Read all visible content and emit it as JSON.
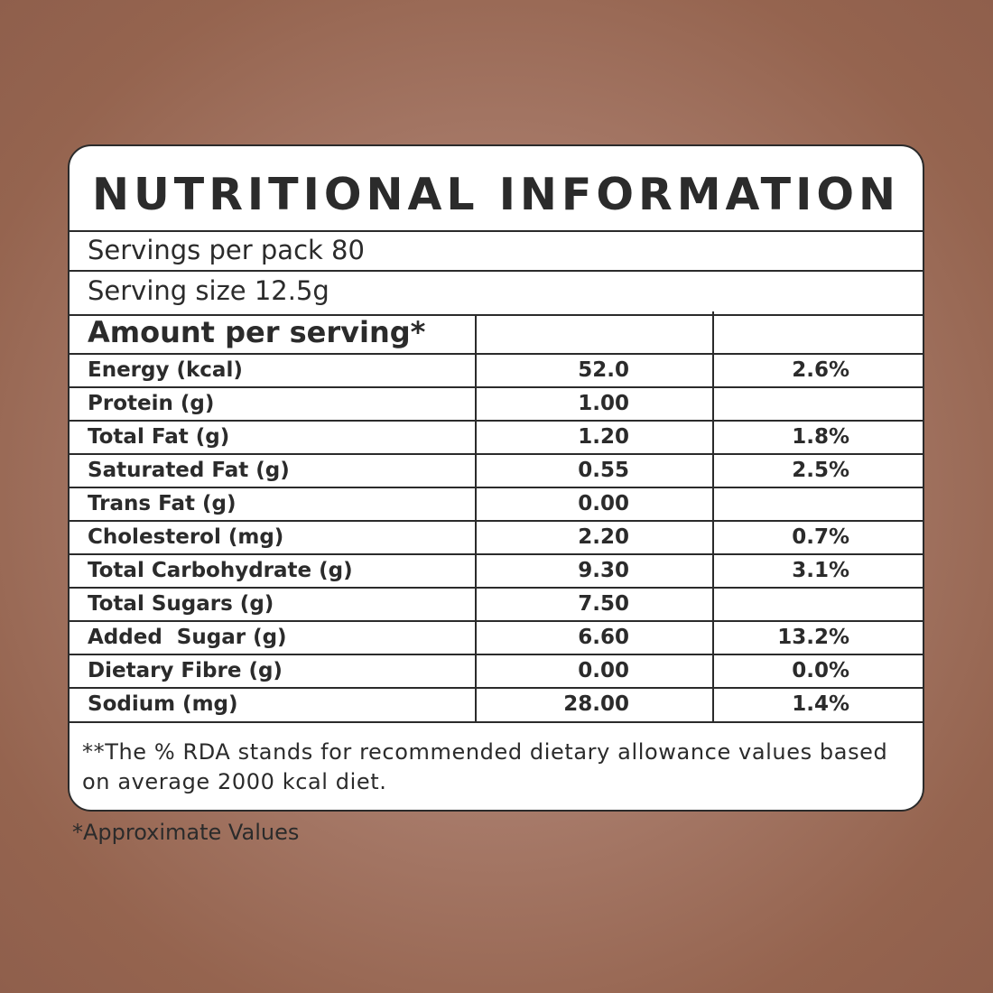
{
  "panel": {
    "title": "NUTRITIONAL INFORMATION",
    "servings_per_pack": "Servings per pack 80",
    "serving_size": "Serving size 12.5g",
    "amount_header": "Amount per serving*",
    "rows": [
      {
        "nutrient": "Energy (kcal)",
        "amount": "52.0",
        "rda": "2.6%"
      },
      {
        "nutrient": "Protein (g)",
        "amount": "1.00",
        "rda": ""
      },
      {
        "nutrient": "Total Fat (g)",
        "amount": "1.20",
        "rda": "1.8%"
      },
      {
        "nutrient": "Saturated Fat (g)",
        "amount": "0.55",
        "rda": "2.5%"
      },
      {
        "nutrient": "Trans Fat (g)",
        "amount": "0.00",
        "rda": ""
      },
      {
        "nutrient": "Cholesterol (mg)",
        "amount": "2.20",
        "rda": "0.7%"
      },
      {
        "nutrient": "Total Carbohydrate (g)",
        "amount": "9.30",
        "rda": "3.1%"
      },
      {
        "nutrient": "Total Sugars (g)",
        "amount": "7.50",
        "rda": ""
      },
      {
        "nutrient": "Added  Sugar (g)",
        "amount": "6.60",
        "rda": "13.2%"
      },
      {
        "nutrient": "Dietary Fibre (g)",
        "amount": "0.00",
        "rda": "0.0%"
      },
      {
        "nutrient": "Sodium (mg)",
        "amount": "28.00",
        "rda": "1.4%"
      }
    ],
    "footnote": "**The % RDA stands for recommended dietary allowance values based on average 2000 kcal diet."
  },
  "approx_note": "*Approximate Values",
  "colors": {
    "background": "#a77a69",
    "panel": "#ffffff",
    "ink": "#2b2b2b"
  }
}
